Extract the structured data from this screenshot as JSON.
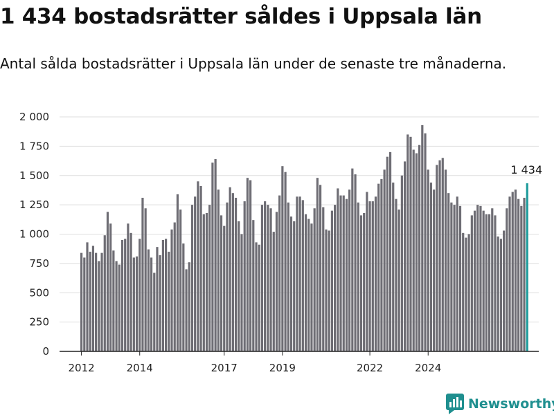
{
  "header": {
    "title": "1 434 bostadsrätter såldes i Uppsala län",
    "subtitle": "Antal sålda bostadsrätter i Uppsala län under de senaste tre månaderna."
  },
  "brand": {
    "name": "Newsworthy",
    "icon": "newsworthy-logo-icon",
    "color": "#1f8f8f"
  },
  "chart_data": {
    "type": "bar",
    "title": "",
    "xlabel": "",
    "ylabel": "",
    "ylim": [
      0,
      2000
    ],
    "y_ticks": [
      0,
      250,
      500,
      750,
      1000,
      1250,
      1500,
      1750,
      2000
    ],
    "y_tick_labels": [
      "0",
      "250",
      "500",
      "750",
      "1 000",
      "1 250",
      "1 500",
      "1 750",
      "2 000"
    ],
    "x_tick_labels": [
      "2012",
      "2014",
      "2017",
      "2019",
      "2022",
      "2024"
    ],
    "x_tick_bar_index": [
      0,
      20,
      49,
      69,
      99,
      119
    ],
    "grid": true,
    "legend": "none",
    "bar_color": "#6e6d74",
    "highlight_color": "#1f9c9c",
    "highlight_label": "1 434",
    "values": [
      840,
      800,
      930,
      850,
      900,
      840,
      770,
      840,
      990,
      1190,
      1090,
      860,
      770,
      740,
      950,
      960,
      1090,
      1010,
      800,
      810,
      960,
      1310,
      1220,
      870,
      800,
      670,
      890,
      820,
      950,
      960,
      850,
      1040,
      1100,
      1340,
      1210,
      920,
      700,
      760,
      1250,
      1320,
      1450,
      1410,
      1170,
      1180,
      1250,
      1610,
      1640,
      1380,
      1160,
      1070,
      1270,
      1400,
      1350,
      1310,
      1110,
      1000,
      1280,
      1480,
      1460,
      1120,
      930,
      910,
      1250,
      1280,
      1250,
      1220,
      1020,
      1190,
      1330,
      1580,
      1530,
      1270,
      1150,
      1110,
      1320,
      1320,
      1290,
      1170,
      1130,
      1090,
      1220,
      1480,
      1420,
      1230,
      1040,
      1030,
      1200,
      1250,
      1390,
      1330,
      1330,
      1300,
      1380,
      1560,
      1510,
      1270,
      1160,
      1180,
      1360,
      1280,
      1280,
      1320,
      1430,
      1470,
      1550,
      1660,
      1700,
      1440,
      1300,
      1210,
      1500,
      1620,
      1850,
      1830,
      1720,
      1690,
      1760,
      1930,
      1860,
      1550,
      1440,
      1380,
      1590,
      1630,
      1650,
      1550,
      1350,
      1270,
      1250,
      1320,
      1240,
      1010,
      970,
      1000,
      1160,
      1200,
      1250,
      1240,
      1200,
      1170,
      1170,
      1220,
      1160,
      980,
      960,
      1030,
      1220,
      1320,
      1360,
      1380,
      1300,
      1240,
      1310,
      1434
    ]
  }
}
